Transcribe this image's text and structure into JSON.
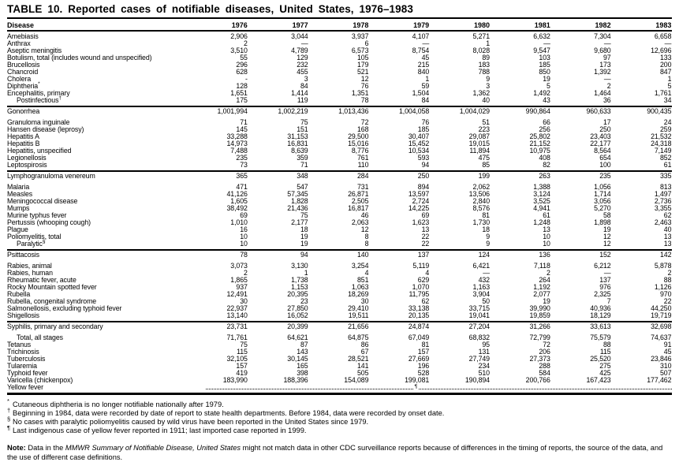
{
  "title": "TABLE 10. Reported cases of notifiable diseases, United States, 1976–1983",
  "columns": [
    "Disease",
    "1976",
    "1977",
    "1978",
    "1979",
    "1980",
    "1981",
    "1982",
    "1983"
  ],
  "table": {
    "sections": [
      {
        "rows": [
          {
            "disease": "Amebiasis",
            "values": [
              "2,906",
              "3,044",
              "3,937",
              "4,107",
              "5,271",
              "6,632",
              "7,304",
              "6,658"
            ]
          },
          {
            "disease": "Anthrax",
            "values": [
              "2",
              "—",
              "6",
              "—",
              "1",
              "—",
              "—",
              "—"
            ]
          },
          {
            "disease": "Aseptic meningitis",
            "values": [
              "3,510",
              "4,789",
              "6,573",
              "8,754",
              "8,028",
              "9,547",
              "9,680",
              "12,696"
            ]
          },
          {
            "disease": "Botulism, total (includes wound and unspecified)",
            "values": [
              "55",
              "129",
              "105",
              "45",
              "89",
              "103",
              "97",
              "133"
            ]
          },
          {
            "disease": "Brucellosis",
            "values": [
              "296",
              "232",
              "179",
              "215",
              "183",
              "185",
              "173",
              "200"
            ]
          },
          {
            "disease": "Chancroid",
            "values": [
              "628",
              "455",
              "521",
              "840",
              "788",
              "850",
              "1,392",
              "847"
            ]
          },
          {
            "disease": "Cholera",
            "values": [
              "-",
              "3",
              "12",
              "1",
              "9",
              "19",
              "—",
              "1"
            ]
          },
          {
            "disease": "Diphtheria",
            "marker": "*",
            "values": [
              "128",
              "84",
              "76",
              "59",
              "3",
              "5",
              "2",
              "5"
            ]
          },
          {
            "disease": "Encephalitis, primary",
            "values": [
              "1,651",
              "1,414",
              "1,351",
              "1,504",
              "1,362",
              "1,492",
              "1,464",
              "1,761"
            ]
          },
          {
            "disease": "Postinfectious",
            "marker": "†",
            "indent": true,
            "values": [
              "175",
              "119",
              "78",
              "84",
              "40",
              "43",
              "36",
              "34"
            ]
          }
        ]
      },
      {
        "rows": [
          {
            "disease": "Gonorrhea",
            "gap_after": true,
            "values": [
              "1,001,994",
              "1,002,219",
              "1,013,436",
              "1,004,058",
              "1,004,029",
              "990,864",
              "960,633",
              "900,435"
            ]
          },
          {
            "disease": "Granuloma inguinale",
            "values": [
              "71",
              "75",
              "72",
              "76",
              "51",
              "66",
              "17",
              "24"
            ]
          },
          {
            "disease": "Hansen disease (leprosy)",
            "values": [
              "145",
              "151",
              "168",
              "185",
              "223",
              "256",
              "250",
              "259"
            ]
          },
          {
            "disease": "Hepatitis A",
            "values": [
              "33,288",
              "31,153",
              "29,500",
              "30,407",
              "29,087",
              "25,802",
              "23,403",
              "21,532"
            ]
          },
          {
            "disease": "Hepatitis B",
            "values": [
              "14,973",
              "16,831",
              "15,016",
              "15,452",
              "19,015",
              "21,152",
              "22,177",
              "24,318"
            ]
          },
          {
            "disease": "Hepatitis, unspecified",
            "values": [
              "7,488",
              "8,639",
              "8,776",
              "10,534",
              "11,894",
              "10,975",
              "8,564",
              "7,149"
            ]
          },
          {
            "disease": "Legionellosis",
            "values": [
              "235",
              "359",
              "761",
              "593",
              "475",
              "408",
              "654",
              "852"
            ]
          },
          {
            "disease": "Leptospirosis",
            "values": [
              "73",
              "71",
              "110",
              "94",
              "85",
              "82",
              "100",
              "61"
            ]
          }
        ]
      },
      {
        "rows": [
          {
            "disease": "Lymphogranuloma venereum",
            "gap_after": true,
            "values": [
              "365",
              "348",
              "284",
              "250",
              "199",
              "263",
              "235",
              "335"
            ]
          },
          {
            "disease": "Malaria",
            "values": [
              "471",
              "547",
              "731",
              "894",
              "2,062",
              "1,388",
              "1,056",
              "813"
            ]
          },
          {
            "disease": "Measles",
            "values": [
              "41,126",
              "57,345",
              "26,871",
              "13,597",
              "13,506",
              "3,124",
              "1,714",
              "1,497"
            ]
          },
          {
            "disease": "Meningococcal disease",
            "values": [
              "1,605",
              "1,828",
              "2,505",
              "2,724",
              "2,840",
              "3,525",
              "3,056",
              "2,736"
            ]
          },
          {
            "disease": "Mumps",
            "values": [
              "38,492",
              "21,436",
              "16,817",
              "14,225",
              "8,576",
              "4,941",
              "5,270",
              "3,355"
            ]
          },
          {
            "disease": "Murine typhus fever",
            "values": [
              "69",
              "75",
              "46",
              "69",
              "81",
              "61",
              "58",
              "62"
            ]
          },
          {
            "disease": "Pertussis (whooping cough)",
            "values": [
              "1,010",
              "2,177",
              "2,063",
              "1,623",
              "1,730",
              "1,248",
              "1,898",
              "2,463"
            ]
          },
          {
            "disease": "Plague",
            "values": [
              "16",
              "18",
              "12",
              "13",
              "18",
              "13",
              "19",
              "40"
            ]
          },
          {
            "disease": "Poliomyelitis, total",
            "values": [
              "10",
              "19",
              "8",
              "22",
              "9",
              "10",
              "12",
              "13"
            ]
          },
          {
            "disease": "Paralytic",
            "marker": "§",
            "indent": true,
            "values": [
              "10",
              "19",
              "8",
              "22",
              "9",
              "10",
              "12",
              "13"
            ]
          }
        ]
      },
      {
        "rows": [
          {
            "disease": "Psittacosis",
            "gap_after": true,
            "values": [
              "78",
              "94",
              "140",
              "137",
              "124",
              "136",
              "152",
              "142"
            ]
          },
          {
            "disease": "Rabies, animal",
            "values": [
              "3,073",
              "3,130",
              "3,254",
              "5,119",
              "6,421",
              "7,118",
              "6,212",
              "5,878"
            ]
          },
          {
            "disease": "Rabies, human",
            "values": [
              "2",
              "1",
              "4",
              "4",
              "—",
              "2",
              "—",
              "2"
            ]
          },
          {
            "disease": "Rheumatic fever, acute",
            "values": [
              "1,865",
              "1,738",
              "851",
              "629",
              "432",
              "264",
              "137",
              "88"
            ]
          },
          {
            "disease": "Rocky Mountain spotted fever",
            "values": [
              "937",
              "1,153",
              "1,063",
              "1,070",
              "1,163",
              "1,192",
              "976",
              "1,126"
            ]
          },
          {
            "disease": "Rubella",
            "values": [
              "12,491",
              "20,395",
              "18,269",
              "11,795",
              "3,904",
              "2,077",
              "2,325",
              "970"
            ]
          },
          {
            "disease": "Rubella, congenital syndrome",
            "values": [
              "30",
              "23",
              "30",
              "62",
              "50",
              "19",
              "7",
              "22"
            ]
          },
          {
            "disease": "Salmonellosis, excluding typhoid fever",
            "values": [
              "22,937",
              "27,850",
              "29,410",
              "33,138",
              "33,715",
              "39,990",
              "40,936",
              "44,250"
            ]
          },
          {
            "disease": "Shigellosis",
            "values": [
              "13,140",
              "16,052",
              "19,511",
              "20,135",
              "19,041",
              "19,859",
              "18,129",
              "19,719"
            ]
          }
        ]
      },
      {
        "rows": [
          {
            "disease": "Syphilis, primary and secondary",
            "gap_after": true,
            "values": [
              "23,731",
              "20,399",
              "21,656",
              "24,874",
              "27,204",
              "31,266",
              "33,613",
              "32,698"
            ]
          },
          {
            "disease": "Total, all stages",
            "indent": true,
            "values": [
              "71,761",
              "64,621",
              "64,875",
              "67,049",
              "68,832",
              "72,799",
              "75,579",
              "74,637"
            ]
          },
          {
            "disease": "Tetanus",
            "values": [
              "75",
              "87",
              "86",
              "81",
              "95",
              "72",
              "88",
              "91"
            ]
          },
          {
            "disease": "Trichinosis",
            "values": [
              "115",
              "143",
              "67",
              "157",
              "131",
              "206",
              "115",
              "45"
            ]
          },
          {
            "disease": "Tuberculosis",
            "values": [
              "32,105",
              "30,145",
              "28,521",
              "27,669",
              "27,749",
              "27,373",
              "25,520",
              "23,846"
            ]
          },
          {
            "disease": "Tularemia",
            "values": [
              "157",
              "165",
              "141",
              "196",
              "234",
              "288",
              "275",
              "310"
            ]
          },
          {
            "disease": "Typhoid fever",
            "values": [
              "419",
              "398",
              "505",
              "528",
              "510",
              "584",
              "425",
              "507"
            ]
          },
          {
            "disease": "Varicella (chickenpox)",
            "values": [
              "183,990",
              "188,396",
              "154,089",
              "199,081",
              "190,894",
              "200,766",
              "167,423",
              "177,462"
            ]
          },
          {
            "disease": "Yellow fever",
            "dotted": true,
            "marker_mid": "¶"
          }
        ]
      }
    ]
  },
  "footnotes": [
    {
      "marker": "*",
      "text": "Cutaneous diphtheria is no longer notifiable nationally after 1979."
    },
    {
      "marker": "†",
      "text": "Beginning in 1984, data were recorded by date of report to state health departments. Before 1984, data were recorded by onset date."
    },
    {
      "marker": "§",
      "text": "No cases with paralytic poliomyelitis caused by wild virus have been reported in the United States since 1979."
    },
    {
      "marker": "¶",
      "text": "Last indigenous case of yellow fever reported in 1911; last imported case reported in 1999."
    }
  ],
  "note": {
    "label": "Note:",
    "before": " Data in the ",
    "em": "MMWR Summary of Notifiable Disease, United States",
    "after": " might not match data in other CDC surveillance reports because of differences in the timing of reports, the source of the data, and the use of different case definitions."
  }
}
